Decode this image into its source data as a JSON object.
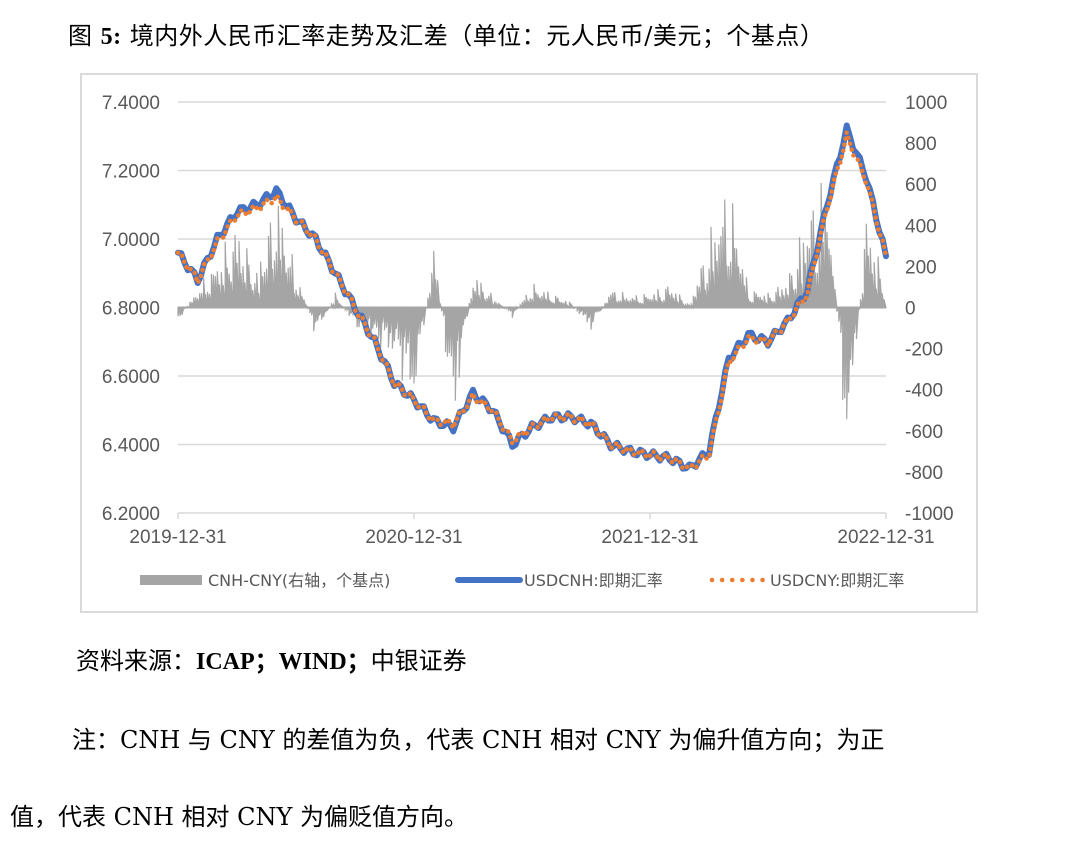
{
  "figure": {
    "title_prefix": "图 ",
    "title_number": "5:",
    "title_text": " 境内外人民币汇率走势及汇差（单位：元人民币/美元；个基点）"
  },
  "source": {
    "label": "资料来源：",
    "items": "ICAP；WIND；",
    "suffix": "中银证券"
  },
  "note": {
    "line1": "注：CNH 与 CNY 的差值为负，代表 CNH 相对 CNY 为偏升值方向；为正",
    "line2": "值，代表 CNH 相对 CNY 为偏贬值方向。"
  },
  "colors": {
    "cnh_line": "#4472C4",
    "cny_dots": "#ED7D31",
    "spread_area": "#A5A5A5",
    "grid": "#D9D9D9",
    "axis_text": "#595959"
  },
  "chart_data": {
    "type": "line",
    "title": "境内外人民币汇率走势及汇差（单位：元人民币/美元；个基点）",
    "xlabel": "",
    "ylabel_left": "元人民币/美元",
    "ylabel_right": "个基点",
    "x_tick_labels": [
      "2019-12-31",
      "2020-12-31",
      "2021-12-31",
      "2022-12-31"
    ],
    "y_left_ticks": [
      "7.4000",
      "7.2000",
      "7.0000",
      "6.8000",
      "6.6000",
      "6.4000",
      "6.2000"
    ],
    "y_right_ticks": [
      "1000",
      "800",
      "600",
      "400",
      "200",
      "0",
      "-200",
      "-400",
      "-600",
      "-800",
      "-1000"
    ],
    "ylim_left": [
      6.2,
      7.4
    ],
    "ylim_right": [
      -1000,
      1000
    ],
    "grid": true,
    "legend_position": "bottom",
    "legend": [
      "CNH-CNY(右轴，个基点)",
      "USDCNH:即期汇率",
      "USDCNY:即期汇率"
    ],
    "x": [
      "2019-12",
      "2020-01",
      "2020-02",
      "2020-03",
      "2020-04",
      "2020-05",
      "2020-06",
      "2020-07",
      "2020-08",
      "2020-09",
      "2020-10",
      "2020-11",
      "2020-12",
      "2021-01",
      "2021-02",
      "2021-03",
      "2021-04",
      "2021-05",
      "2021-06",
      "2021-07",
      "2021-08",
      "2021-09",
      "2021-10",
      "2021-11",
      "2021-12",
      "2022-01",
      "2022-02",
      "2022-03",
      "2022-04",
      "2022-05",
      "2022-06",
      "2022-07",
      "2022-08",
      "2022-09",
      "2022-10",
      "2022-11",
      "2022-12"
    ],
    "series": [
      {
        "name": "USDCNH:即期汇率",
        "axis": "left",
        "type": "line",
        "values": [
          6.96,
          6.88,
          7.0,
          7.08,
          7.1,
          7.14,
          7.06,
          7.0,
          6.9,
          6.8,
          6.7,
          6.58,
          6.53,
          6.47,
          6.45,
          6.55,
          6.5,
          6.4,
          6.45,
          6.48,
          6.48,
          6.46,
          6.4,
          6.38,
          6.37,
          6.36,
          6.33,
          6.38,
          6.65,
          6.72,
          6.7,
          6.76,
          6.85,
          7.1,
          7.32,
          7.18,
          6.95
        ]
      },
      {
        "name": "USDCNY:即期汇率",
        "axis": "left",
        "type": "dotted-line",
        "values": [
          6.96,
          6.88,
          6.99,
          7.07,
          7.09,
          7.12,
          7.06,
          7.0,
          6.9,
          6.8,
          6.7,
          6.58,
          6.53,
          6.47,
          6.46,
          6.54,
          6.5,
          6.41,
          6.45,
          6.48,
          6.48,
          6.46,
          6.4,
          6.38,
          6.37,
          6.36,
          6.33,
          6.37,
          6.64,
          6.71,
          6.7,
          6.76,
          6.84,
          7.09,
          7.3,
          7.17,
          6.95
        ]
      },
      {
        "name": "CNH-CNY(右轴，个基点)",
        "axis": "right",
        "type": "area",
        "values": [
          -60,
          80,
          200,
          350,
          150,
          480,
          150,
          -120,
          60,
          -80,
          -160,
          -200,
          -420,
          280,
          -500,
          150,
          50,
          -40,
          100,
          60,
          20,
          -100,
          80,
          50,
          60,
          100,
          10,
          300,
          520,
          80,
          60,
          120,
          400,
          560,
          -650,
          400,
          80
        ]
      }
    ]
  }
}
